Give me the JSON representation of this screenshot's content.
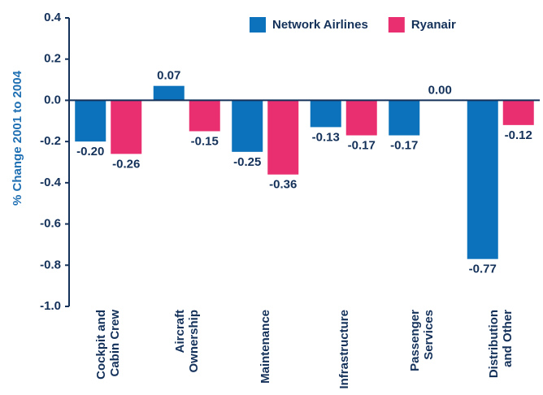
{
  "chart_data": {
    "type": "bar",
    "y_label": "% Change 2001 to 2004",
    "categories": [
      "Cockpit and\nCabin Crew",
      "Aircraft\nOwnership",
      "Maintenance",
      "Infrastructure",
      "Passenger\nServices",
      "Distribution\nand Other"
    ],
    "series": [
      {
        "name": "Network Airlines",
        "color": "#0b72bb",
        "values": [
          -0.2,
          0.07,
          -0.25,
          -0.13,
          -0.17,
          -0.77
        ],
        "value_labels": [
          "-0.20",
          "0.07",
          "-0.25",
          "-0.13",
          "-0.17",
          "-0.77"
        ]
      },
      {
        "name": "Ryanair",
        "color": "#ea2f70",
        "values": [
          -0.26,
          -0.15,
          -0.36,
          -0.17,
          0,
          -0.12
        ],
        "value_labels": [
          "-0.26",
          "-0.15",
          "-0.36",
          "-0.17",
          "0.00",
          "-0.12"
        ]
      }
    ],
    "ylim": [
      -1,
      0.4
    ],
    "yticks": [
      {
        "value": -1,
        "label": "-1.0"
      },
      -0.8,
      -0.6,
      -0.4,
      -0.2,
      {
        "value": 0,
        "label": "0.0"
      },
      0.2,
      0.4
    ],
    "legend": "top-right"
  }
}
